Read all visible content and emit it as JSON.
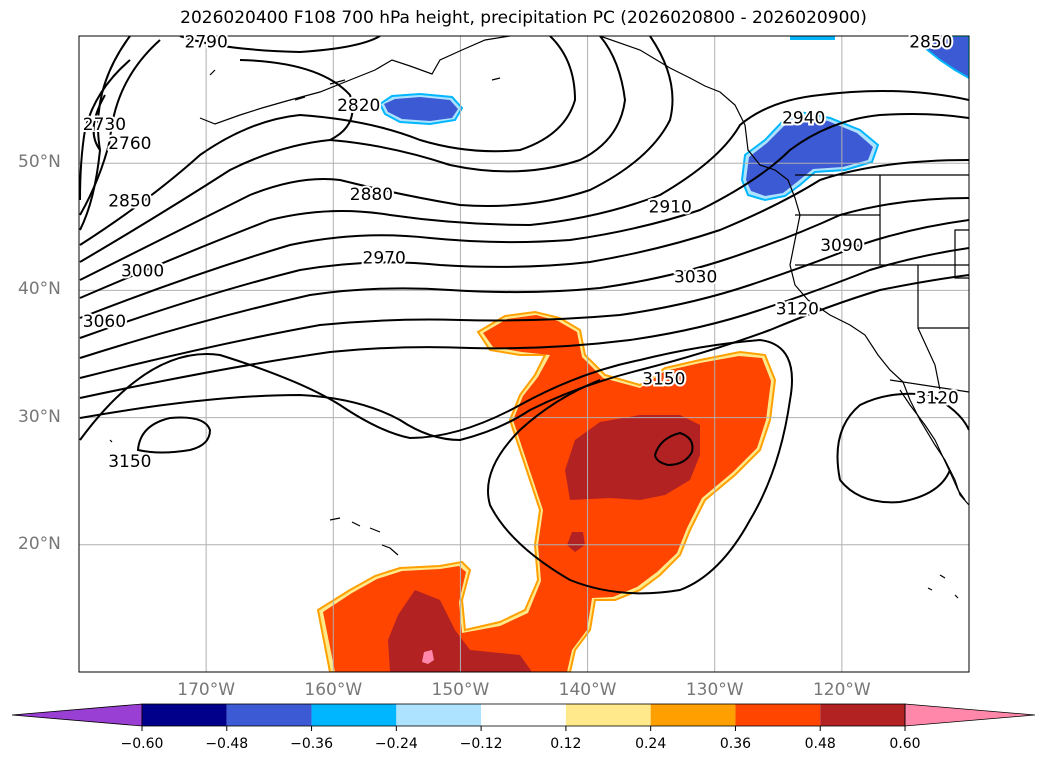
{
  "title": "2026020400 F108 700 hPa height, precipitation PC (2026020800 - 2026020900)",
  "map": {
    "lon_range": [
      -180,
      -110
    ],
    "lat_range": [
      10,
      60
    ],
    "lat_labels": [
      {
        "lat": 50,
        "label": "50°N"
      },
      {
        "lat": 40,
        "label": "40°N"
      },
      {
        "lat": 30,
        "label": "30°N"
      },
      {
        "lat": 20,
        "label": "20°N"
      }
    ],
    "lon_labels": [
      {
        "lon": -170,
        "label": "170°W"
      },
      {
        "lon": -160,
        "label": "160°W"
      },
      {
        "lon": -150,
        "label": "150°W"
      },
      {
        "lon": -140,
        "label": "140°W"
      },
      {
        "lon": -130,
        "label": "130°W"
      },
      {
        "lon": -120,
        "label": "120°W"
      }
    ],
    "contour_labels": [
      {
        "label": "2790",
        "lon": -170,
        "lat": 59.5
      },
      {
        "label": "2820",
        "lon": -158,
        "lat": 54.5
      },
      {
        "label": "2730",
        "lon": -178,
        "lat": 53
      },
      {
        "label": "2760",
        "lon": -176,
        "lat": 51.5
      },
      {
        "label": "2850",
        "lon": -176,
        "lat": 47
      },
      {
        "label": "2880",
        "lon": -157,
        "lat": 47.5
      },
      {
        "label": "2910",
        "lon": -133.5,
        "lat": 46.5
      },
      {
        "label": "2940",
        "lon": -123,
        "lat": 53.5
      },
      {
        "label": "2850",
        "lon": -113,
        "lat": 59.5
      },
      {
        "label": "2970",
        "lon": -156,
        "lat": 42.5
      },
      {
        "label": "3000",
        "lon": -175,
        "lat": 41.5
      },
      {
        "label": "3030",
        "lon": -131.5,
        "lat": 41
      },
      {
        "label": "3060",
        "lon": -178,
        "lat": 37.5
      },
      {
        "label": "3090",
        "lon": -120,
        "lat": 43.5
      },
      {
        "label": "3120",
        "lon": -123.5,
        "lat": 38.5
      },
      {
        "label": "3150",
        "lon": -134,
        "lat": 33
      },
      {
        "label": "3150",
        "lon": -176,
        "lat": 26.5
      },
      {
        "label": "3120",
        "lon": -112.5,
        "lat": 31.5
      }
    ],
    "colors": {
      "coast": "#000000",
      "grid": "#b0b0b0",
      "contour": "#000000"
    }
  },
  "colorbar": {
    "levels": [
      -0.6,
      -0.48,
      -0.36,
      -0.24,
      -0.12,
      0.12,
      0.24,
      0.36,
      0.48,
      0.6
    ],
    "tick_labels": [
      "−0.60",
      "−0.48",
      "−0.36",
      "−0.24",
      "−0.12",
      "0.12",
      "0.24",
      "0.36",
      "0.48",
      "0.60"
    ],
    "colors": [
      "#9a3fd4",
      "#00008b",
      "#3c5ad4",
      "#00b7ff",
      "#ade3ff",
      "#ffffff",
      "#ffe98a",
      "#ffa000",
      "#ff4500",
      "#b22222",
      "#ff88aa"
    ]
  }
}
